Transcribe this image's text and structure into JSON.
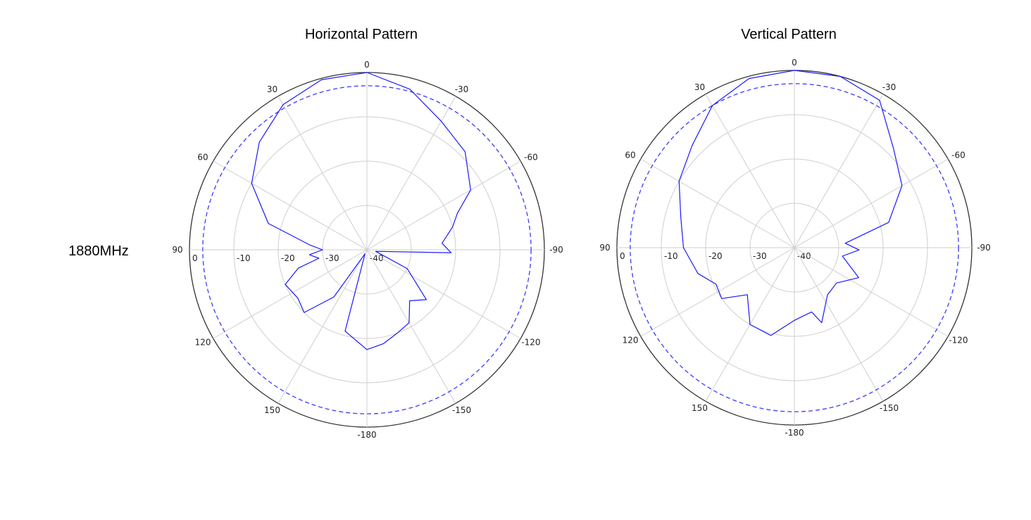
{
  "row_label": "1880MHz",
  "chart_data": [
    {
      "type": "polar",
      "title": "Horizontal Pattern",
      "color": "#1a1aff",
      "theta": [
        0,
        15,
        30,
        45,
        60,
        75,
        85,
        90,
        95,
        100,
        105,
        113,
        125,
        135,
        145,
        155,
        165,
        180,
        -170,
        -160,
        -150,
        -140,
        -130,
        -115,
        -100,
        -92,
        -85,
        -75,
        -68,
        -60,
        -45,
        -30,
        -15
      ],
      "r": [
        0,
        -0.3,
        -2.2,
        -5.7,
        -10,
        -17,
        -27,
        -30,
        -27,
        -29,
        -24,
        -20,
        -21,
        -20,
        -27,
        -39,
        -21,
        -17.5,
        -18.5,
        -20,
        -21,
        -25,
        -22.5,
        -30,
        -38,
        -21,
        -23,
        -20,
        -18,
        -13,
        -8.7,
        -6.5,
        -2.5
      ],
      "rlim": [
        -40,
        0
      ],
      "rticks": [
        0,
        -10,
        -20,
        -30,
        -40
      ],
      "angle_ticks": [
        0,
        30,
        60,
        90,
        120,
        150,
        -180,
        -150,
        -120,
        -90,
        -60,
        -30
      ],
      "reference_level": -3,
      "reference_color": "#3b3bff",
      "grid": true
    },
    {
      "type": "polar",
      "title": "Vertical Pattern",
      "color": "#1a1aff",
      "theta": [
        0,
        15,
        30,
        45,
        60,
        75,
        90,
        105,
        115,
        125,
        135,
        150,
        165,
        180,
        -165,
        -160,
        -145,
        -130,
        -115,
        -100,
        -92,
        -85,
        -75,
        -60,
        -45,
        -30,
        -15
      ],
      "r": [
        0,
        -0.5,
        -3,
        -7.4,
        -10,
        -13.5,
        -15,
        -17.5,
        -20.5,
        -20,
        -25,
        -20,
        -19.5,
        -23.6,
        -25,
        -22,
        -27,
        -27.6,
        -24,
        -29,
        -25.4,
        -28.5,
        -18,
        -12,
        -8.4,
        -1.6,
        0
      ],
      "rlim": [
        -40,
        0
      ],
      "rticks": [
        0,
        -10,
        -20,
        -30,
        -40
      ],
      "angle_ticks": [
        0,
        30,
        60,
        90,
        120,
        150,
        -180,
        -150,
        -120,
        -90,
        -60,
        -30
      ],
      "reference_level": -3,
      "reference_color": "#3b3bff",
      "grid": true
    }
  ]
}
